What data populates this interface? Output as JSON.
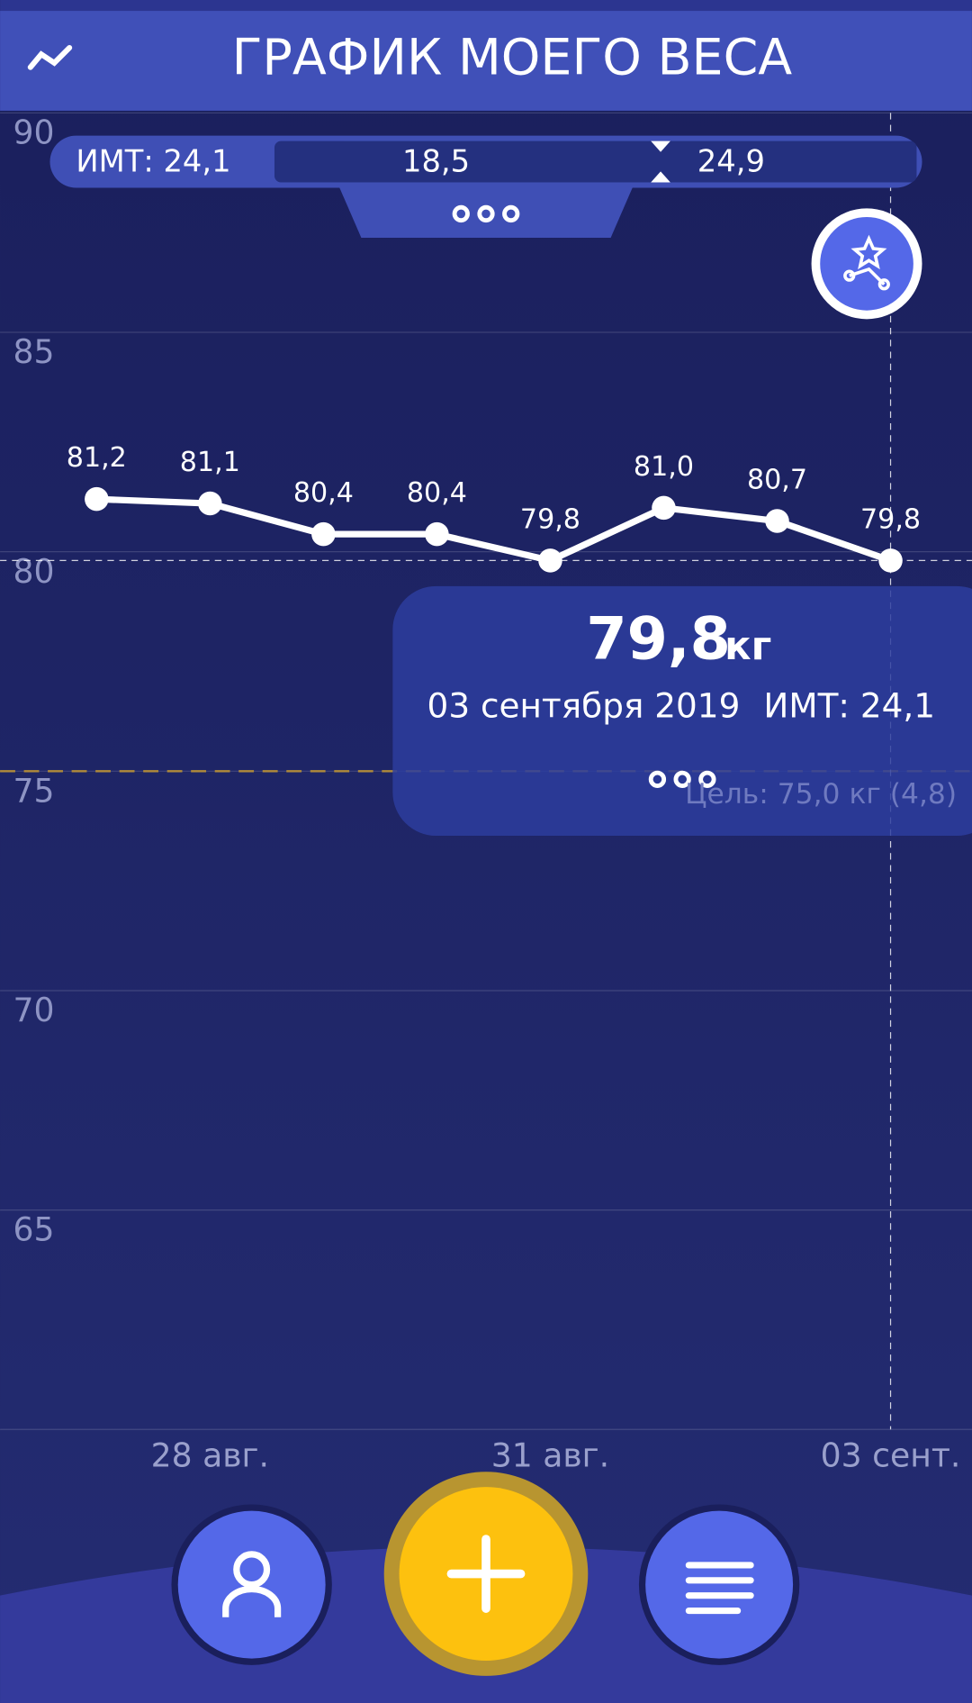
{
  "header": {
    "title": "ГРАФИК МОЕГО ВЕСА"
  },
  "bmi_bar": {
    "label": "ИМТ: 24,1",
    "low": "18,5",
    "high": "24,9"
  },
  "tooltip": {
    "value": "79,8",
    "unit": "кг",
    "date": "03 сентября 2019",
    "bmi": "ИМТ: 24,1"
  },
  "chart_data": {
    "type": "line",
    "categories": [
      null,
      "28 авг.",
      null,
      null,
      "31 авг.",
      null,
      null,
      "03 сент."
    ],
    "series": [
      {
        "color": "#ffffff",
        "values": [
          81.2,
          81.1,
          80.4,
          80.4,
          79.8,
          81.0,
          80.7,
          79.8
        ],
        "value_labels": [
          "81,2",
          "81,1",
          "80,4",
          "80,4",
          "79,8",
          "81,0",
          "80,7",
          "79,8"
        ]
      }
    ],
    "ylim": [
      60,
      90
    ],
    "yticks": [
      65,
      70,
      75,
      80,
      85,
      90
    ],
    "grid": true,
    "goal": {
      "value": 75,
      "label": "Цель: 75,0 кг (4,8)",
      "color": "#b08a3a"
    }
  }
}
